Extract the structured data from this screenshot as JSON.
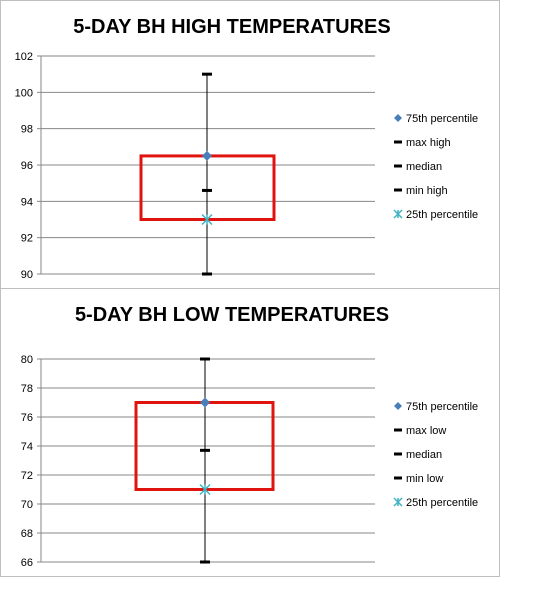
{
  "colors": {
    "box": "#e0140f",
    "whisker": "#000000",
    "grid": "#878787",
    "p75_marker": "#4a7ebb",
    "p25_marker": "#3fb3c4"
  },
  "chart_data": [
    {
      "type": "box",
      "title": "5-DAY BH HIGH TEMPERATURES",
      "xlabel": "",
      "ylabel": "",
      "ylim": [
        90,
        102
      ],
      "yticks": [
        90,
        92,
        94,
        96,
        98,
        100,
        102
      ],
      "grid": true,
      "legend_position": "right",
      "values": {
        "p75": 96.5,
        "max": 101,
        "median": 94.6,
        "min": 90,
        "p25": 93
      },
      "legend": [
        {
          "key": "p75",
          "label": "75th percentile",
          "marker": "diamond"
        },
        {
          "key": "max",
          "label": "max high",
          "marker": "dash"
        },
        {
          "key": "median",
          "label": "median",
          "marker": "dash"
        },
        {
          "key": "min",
          "label": "min high",
          "marker": "dash"
        },
        {
          "key": "p25",
          "label": "25th percentile",
          "marker": "star"
        }
      ]
    },
    {
      "type": "box",
      "title": "5-DAY BH LOW TEMPERATURES",
      "xlabel": "",
      "ylabel": "",
      "ylim": [
        66,
        80
      ],
      "yticks": [
        66,
        68,
        70,
        72,
        74,
        76,
        78,
        80
      ],
      "grid": true,
      "legend_position": "right",
      "values": {
        "p75": 77,
        "max": 80,
        "median": 73.7,
        "min": 66,
        "p25": 71
      },
      "legend": [
        {
          "key": "p75",
          "label": "75th percentile",
          "marker": "diamond"
        },
        {
          "key": "max",
          "label": "max low",
          "marker": "dash"
        },
        {
          "key": "median",
          "label": "median",
          "marker": "dash"
        },
        {
          "key": "min",
          "label": "min low",
          "marker": "dash"
        },
        {
          "key": "p25",
          "label": "25th percentile",
          "marker": "star"
        }
      ]
    }
  ]
}
